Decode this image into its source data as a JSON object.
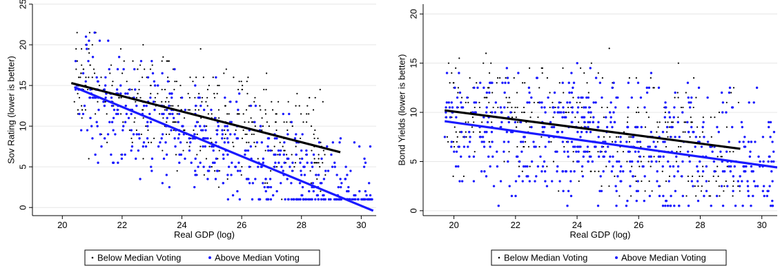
{
  "chart_data": [
    {
      "type": "scatter",
      "xlabel": "Real GDP (log)",
      "ylabel": "Sov Rating (lower is better)",
      "xlim": [
        19,
        30.5
      ],
      "ylim": [
        -1,
        25
      ],
      "xticks": [
        "20",
        "22",
        "24",
        "26",
        "28",
        "30"
      ],
      "yticks": [
        "0",
        "5",
        "10",
        "15",
        "20",
        "25"
      ],
      "grid": "horizontal",
      "legend_position": "bottom",
      "series": [
        {
          "name": "Below Median Voting",
          "color": "#000000",
          "kind": "points",
          "cloud": {
            "xmin": 20.3,
            "xmax": 28.8,
            "ymin": 1,
            "ymax": 21.5,
            "n": 420,
            "seed": 11
          }
        },
        {
          "name": "Above Median Voting",
          "color": "#1a1aff",
          "kind": "points",
          "cloud": {
            "xmin": 20.4,
            "xmax": 30.4,
            "ymin": 1,
            "ymax": 23,
            "n": 520,
            "seed": 23
          }
        }
      ],
      "fits": [
        {
          "name": "Below Median Voting",
          "color": "#000000",
          "x": [
            20.3,
            29.3
          ],
          "y": [
            15.3,
            6.8
          ]
        },
        {
          "name": "Above Median Voting",
          "color": "#1a1aff",
          "x": [
            20.4,
            30.4
          ],
          "y": [
            14.8,
            -0.4
          ]
        }
      ]
    },
    {
      "type": "scatter",
      "xlabel": "Real GDP (log)",
      "ylabel": "Bond Yields (lower is better)",
      "xlim": [
        19,
        30.5
      ],
      "ylim": [
        -0.5,
        21
      ],
      "xticks": [
        "20",
        "22",
        "24",
        "26",
        "28",
        "30"
      ],
      "yticks": [
        "0",
        "5",
        "10",
        "15",
        "20"
      ],
      "grid": "horizontal",
      "legend_position": "bottom",
      "series": [
        {
          "name": "Below Median Voting",
          "color": "#000000",
          "kind": "points",
          "cloud": {
            "xmin": 19.7,
            "xmax": 29.3,
            "ymin": 1.5,
            "ymax": 20.3,
            "n": 380,
            "seed": 37
          }
        },
        {
          "name": "Above Median Voting",
          "color": "#1a1aff",
          "kind": "points",
          "cloud": {
            "xmin": 19.7,
            "xmax": 30.4,
            "ymin": 0.5,
            "ymax": 20,
            "n": 620,
            "seed": 51
          }
        }
      ],
      "fits": [
        {
          "name": "Below Median Voting",
          "color": "#000000",
          "x": [
            19.7,
            29.3
          ],
          "y": [
            10.2,
            6.3
          ]
        },
        {
          "name": "Above Median Voting",
          "color": "#1a1aff",
          "x": [
            19.7,
            30.5
          ],
          "y": [
            9.1,
            4.4
          ]
        }
      ]
    }
  ]
}
